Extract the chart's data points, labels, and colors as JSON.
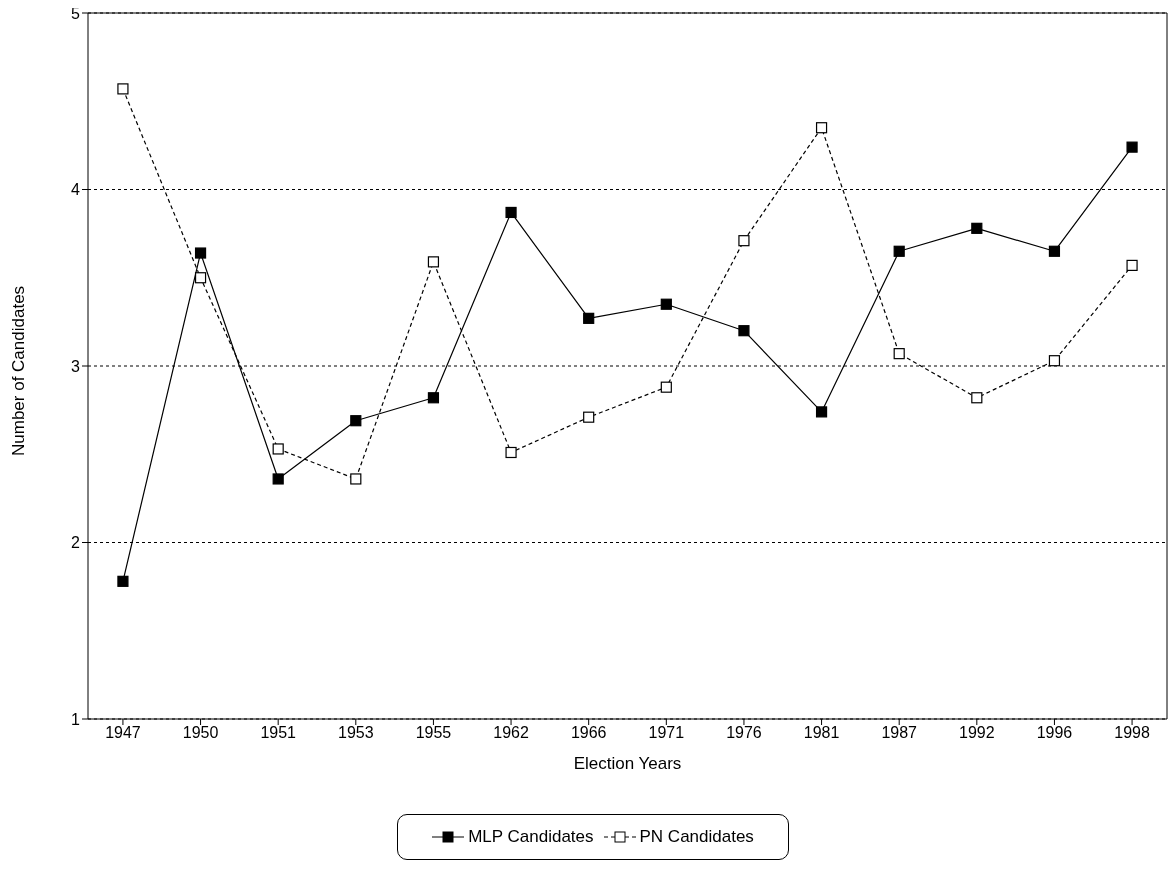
{
  "chart_data": {
    "type": "line",
    "xlabel": "Election Years",
    "ylabel": "Number of Candidates",
    "categories": [
      "1947",
      "1950",
      "1951",
      "1953",
      "1955",
      "1962",
      "1966",
      "1971",
      "1976",
      "1981",
      "1987",
      "1992",
      "1996",
      "1998"
    ],
    "ylim": [
      1,
      5
    ],
    "yticks": [
      1,
      2,
      3,
      4,
      5
    ],
    "grid": "y",
    "legend": "bottom",
    "marker": "square",
    "series": [
      {
        "name": "MLP Candidates",
        "color": "#000000",
        "line_style": "solid",
        "values": [
          1.78,
          3.64,
          2.36,
          2.69,
          2.82,
          3.87,
          3.27,
          3.35,
          3.2,
          2.74,
          3.65,
          3.78,
          3.65,
          4.24
        ]
      },
      {
        "name": "PN Candidates",
        "color": "#000000",
        "line_style": "dashed",
        "values": [
          4.57,
          3.5,
          2.53,
          2.36,
          3.59,
          2.51,
          2.71,
          2.88,
          3.71,
          4.35,
          3.07,
          2.82,
          3.03,
          3.57
        ]
      }
    ]
  }
}
